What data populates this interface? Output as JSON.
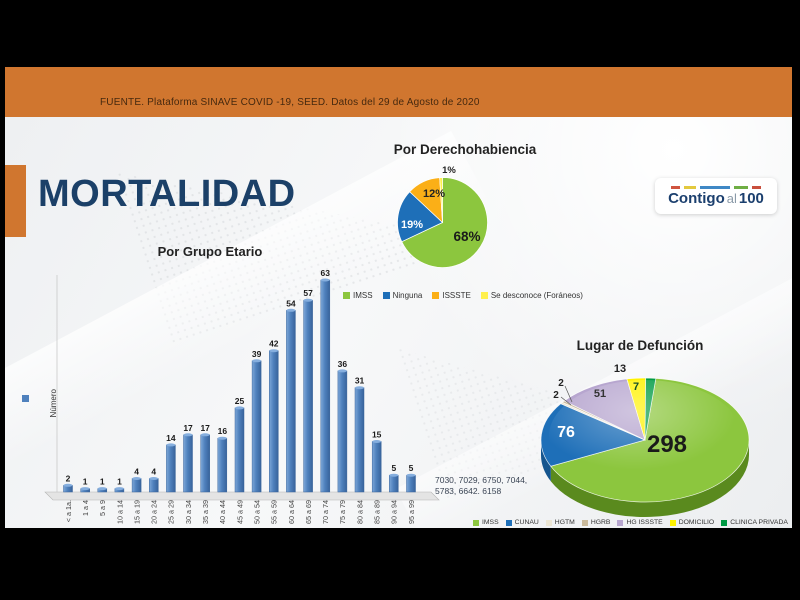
{
  "header": {
    "source_text": "FUENTE. Plataforma SINAVE COVID -19, SEED. Datos del 29 de Agosto de 2020"
  },
  "title": "MORTALIDAD",
  "logo": {
    "word1": "Contigo",
    "word2": "al",
    "word3": "100",
    "dash_colors": [
      "#d0543f",
      "#e3c93e",
      "#3f88c5",
      "#6fae44",
      "#c94f3d"
    ]
  },
  "notes": {
    "totals_text": "7030, 7029, 6750, 7044,\n5783, 6642. 6158"
  },
  "colors": {
    "header_orange": "#d0762f",
    "title_navy": "#1b4068",
    "bar_blue": "#4f81bd",
    "frame_black": "#000000"
  },
  "chart_data": [
    {
      "id": "mortalidad_por_grupo_etario",
      "type": "bar",
      "title": "Por Grupo Etario",
      "series_label": "Número",
      "categories": [
        "< a 1a.",
        "1 a 4",
        "5 a 9",
        "10 a 14",
        "15 a 19",
        "20 a 24",
        "25 a 29",
        "30 a 34",
        "35 a 39",
        "40 a 44",
        "45 a 49",
        "50 a 54",
        "55 a 59",
        "60 a 64",
        "65 a 69",
        "70 a 74",
        "75 a 79",
        "80 a 84",
        "85 a 89",
        "90 a 94",
        "95 a 99"
      ],
      "values": [
        2,
        1,
        1,
        1,
        4,
        4,
        14,
        17,
        17,
        16,
        25,
        39,
        42,
        54,
        57,
        63,
        36,
        31,
        15,
        5,
        5
      ],
      "bar_color": "#4f81bd",
      "ylim": [
        0,
        63
      ],
      "grid": false,
      "legend_position": "left"
    },
    {
      "id": "por_derechohabiencia",
      "type": "pie",
      "title": "Por Derechohabiencia",
      "labels": [
        "IMSS",
        "Ninguna",
        "ISSSTE",
        "Se desconoce (Foráneos)"
      ],
      "values": [
        68,
        19,
        12,
        1
      ],
      "value_labels": [
        "68%",
        "19%",
        "12%",
        "1%"
      ],
      "colors": [
        "#8cc63e",
        "#1e6fb8",
        "#fbaf17",
        "#fff04d"
      ],
      "legend_position": "bottom"
    },
    {
      "id": "lugar_de_defuncion",
      "type": "pie",
      "title": "Lugar de Defunción",
      "labels": [
        "IMSS",
        "CUNAU",
        "HGTM",
        "HGRB",
        "HG ISSSTE",
        "DOMICILIO",
        "CLINICA PRIVADA"
      ],
      "values": [
        298,
        76,
        2,
        2,
        51,
        13,
        7
      ],
      "value_labels": [
        "298",
        "76",
        "2",
        "2",
        "51",
        "13",
        "7"
      ],
      "colors": [
        "#8cc63e",
        "#1e6fb8",
        "#ece6d4",
        "#c9b99a",
        "#b7a6cf",
        "#fff200",
        "#009a44"
      ],
      "style": "3d",
      "legend_position": "bottom"
    }
  ]
}
